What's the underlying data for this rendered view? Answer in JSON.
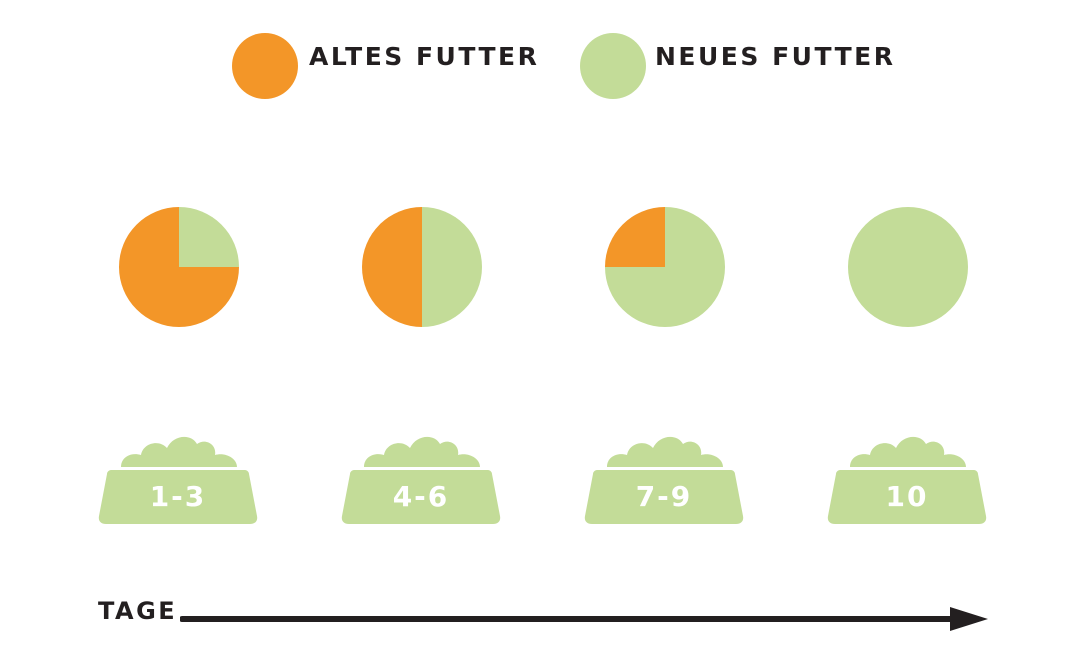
{
  "legend": {
    "old": {
      "label": "ALTES FUTTER",
      "color": "#f39628"
    },
    "new": {
      "label": "NEUES FUTTER",
      "color": "#c3dc98"
    }
  },
  "stages": [
    {
      "days": "1-3",
      "old_share": 0.75,
      "new_share": 0.25
    },
    {
      "days": "4-6",
      "old_share": 0.5,
      "new_share": 0.5
    },
    {
      "days": "7-9",
      "old_share": 0.25,
      "new_share": 0.75
    },
    {
      "days": "10",
      "old_share": 0,
      "new_share": 1
    }
  ],
  "axis": {
    "label": "TAGE",
    "arrow_color": "#231f20",
    "icon": "arrow-right-icon"
  },
  "bowl_icon": "food-bowl-icon"
}
